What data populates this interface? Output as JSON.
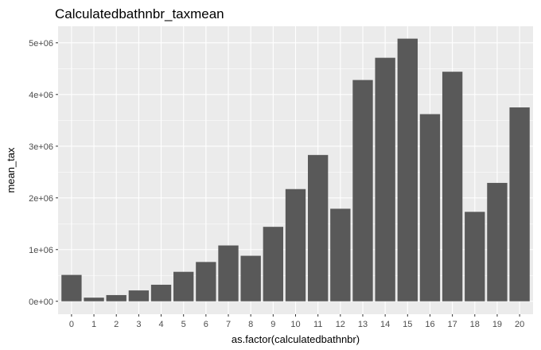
{
  "chart_data": {
    "type": "bar",
    "title": "Calculatedbathnbr_taxmean",
    "xlabel": "as.factor(calculatedbathnbr)",
    "ylabel": "mean_tax",
    "categories": [
      "0",
      "1",
      "2",
      "3",
      "4",
      "5",
      "6",
      "7",
      "8",
      "9",
      "10",
      "11",
      "12",
      "13",
      "14",
      "15",
      "16",
      "17",
      "18",
      "19",
      "20"
    ],
    "values": [
      510000,
      70000,
      120000,
      210000,
      320000,
      570000,
      760000,
      1080000,
      880000,
      1440000,
      2170000,
      2830000,
      1790000,
      4280000,
      4710000,
      5080000,
      3620000,
      4440000,
      1730000,
      2290000,
      3750000
    ],
    "ylim": [
      -250000,
      5320000
    ],
    "yticks": [
      0,
      1000000,
      2000000,
      3000000,
      4000000,
      5000000
    ],
    "ytick_labels": [
      "0e+00",
      "1e+06",
      "2e+06",
      "3e+06",
      "4e+06",
      "5e+06"
    ],
    "grid": true,
    "legend": "none",
    "bar_color": "#595959",
    "panel_color": "#ebebeb"
  }
}
